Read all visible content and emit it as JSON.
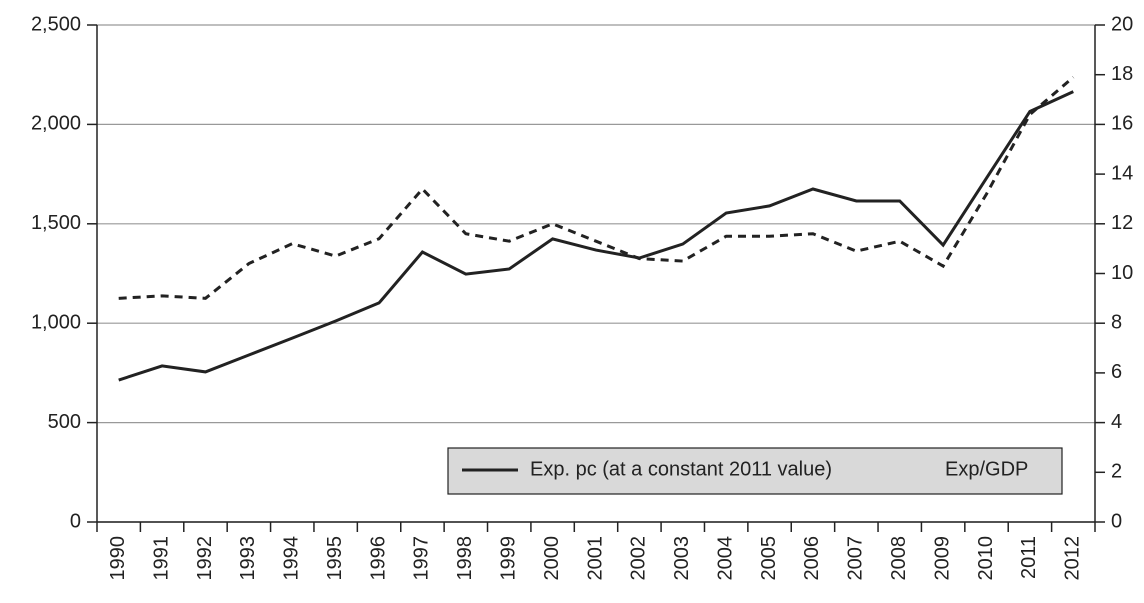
{
  "chart_data": {
    "type": "line",
    "categories": [
      "1990",
      "1991",
      "1992",
      "1993",
      "1994",
      "1995",
      "1996",
      "1997",
      "1998",
      "1999",
      "2000",
      "2001",
      "2002",
      "2003",
      "2004",
      "2005",
      "2006",
      "2007",
      "2008",
      "2009",
      "2010",
      "2011",
      "2012"
    ],
    "series": [
      {
        "name": "Exp. pc (at a constant 2011 value)",
        "color": "#222222",
        "dash": "solid",
        "values": [
          714,
          785,
          755,
          840,
          925,
          1011,
          1102,
          1358,
          1247,
          1273,
          1424,
          1368,
          1328,
          1398,
          1554,
          1590,
          1675,
          1615,
          1615,
          1393,
          1730,
          2065,
          2165
        ]
      },
      {
        "name": "Exp/GDP",
        "color": "#222222",
        "dash": "dashed",
        "axis": "y2",
        "values": [
          9.0,
          9.1,
          9.0,
          10.4,
          11.2,
          10.7,
          11.4,
          13.4,
          11.6,
          11.3,
          12.0,
          11.3,
          10.6,
          10.5,
          11.5,
          11.5,
          11.6,
          10.9,
          11.3,
          10.3,
          13.2,
          16.4,
          17.9
        ]
      }
    ],
    "ylim": [
      0,
      2500
    ],
    "yticks": [
      0,
      500,
      {
        "value": 1000,
        "label": "1,000"
      },
      {
        "value": 1500,
        "label": "1,500"
      },
      {
        "value": 2000,
        "label": "2,000"
      },
      {
        "value": 2500,
        "label": "2,500"
      }
    ],
    "y2lim": [
      0,
      20
    ],
    "y2ticks": [
      0,
      2,
      4,
      6,
      8,
      10,
      12,
      14,
      16,
      18,
      20
    ],
    "grid": true,
    "legend": "bottom-right"
  }
}
